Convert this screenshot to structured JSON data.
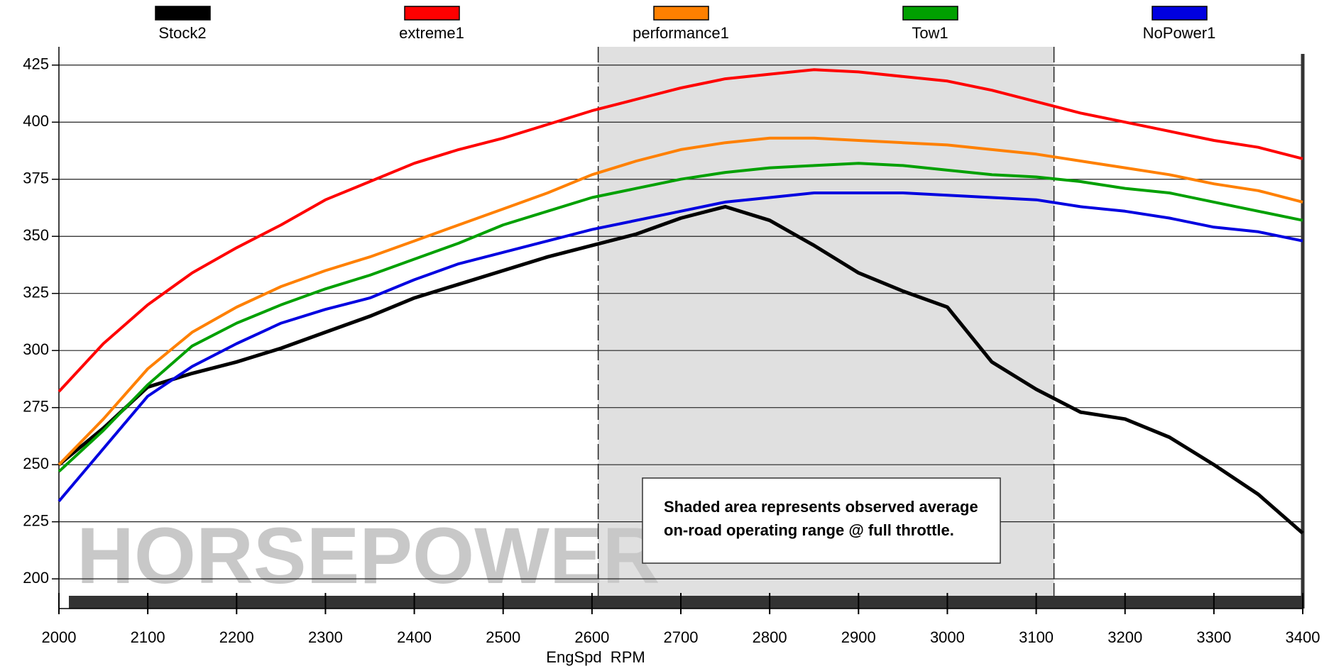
{
  "chart_data": {
    "type": "line",
    "x_label": "EngSpd  RPM",
    "watermark": "HORSEPOWER",
    "annotation": [
      "Shaded area represents observed average",
      "on-road operating range @ full throttle."
    ],
    "shaded_range": [
      2607,
      3120
    ],
    "xlim": [
      2000,
      3400
    ],
    "xticks": [
      2000,
      2100,
      2200,
      2300,
      2400,
      2500,
      2600,
      2700,
      2800,
      2900,
      3000,
      3100,
      3200,
      3300,
      3400
    ],
    "ylim": [
      187,
      433
    ],
    "yticks": [
      200,
      225,
      250,
      275,
      300,
      325,
      350,
      375,
      400,
      425
    ],
    "grid": true,
    "x": [
      2000,
      2050,
      2100,
      2150,
      2200,
      2250,
      2300,
      2350,
      2400,
      2450,
      2500,
      2550,
      2600,
      2650,
      2700,
      2750,
      2800,
      2850,
      2900,
      2950,
      3000,
      3050,
      3100,
      3150,
      3200,
      3250,
      3300,
      3350,
      3400
    ],
    "series": [
      {
        "name": "Stock2",
        "color": "#000000",
        "values": [
          250,
          266,
          284,
          290,
          295,
          301,
          308,
          315,
          323,
          329,
          335,
          341,
          346,
          351,
          358,
          363,
          357,
          346,
          334,
          326,
          319,
          295,
          283,
          273,
          270,
          262,
          250,
          237,
          220
        ]
      },
      {
        "name": "extreme1",
        "color": "#ff0000",
        "values": [
          282,
          303,
          320,
          334,
          345,
          355,
          366,
          374,
          382,
          388,
          393,
          399,
          405,
          410,
          415,
          419,
          421,
          423,
          422,
          420,
          418,
          414,
          409,
          404,
          400,
          396,
          392,
          389,
          384
        ]
      },
      {
        "name": "performance1",
        "color": "#ff8000",
        "values": [
          250,
          270,
          292,
          308,
          319,
          328,
          335,
          341,
          348,
          355,
          362,
          369,
          377,
          383,
          388,
          391,
          393,
          393,
          392,
          391,
          390,
          388,
          386,
          383,
          380,
          377,
          373,
          370,
          365
        ]
      },
      {
        "name": "Tow1",
        "color": "#00a000",
        "values": [
          247,
          265,
          285,
          302,
          312,
          320,
          327,
          333,
          340,
          347,
          355,
          361,
          367,
          371,
          375,
          378,
          380,
          381,
          382,
          381,
          379,
          377,
          376,
          374,
          371,
          369,
          365,
          361,
          357
        ]
      },
      {
        "name": "NoPower1",
        "color": "#0000e0",
        "values": [
          234,
          257,
          280,
          293,
          303,
          312,
          318,
          323,
          331,
          338,
          343,
          348,
          353,
          357,
          361,
          365,
          367,
          369,
          369,
          369,
          368,
          367,
          366,
          363,
          361,
          358,
          354,
          352,
          348
        ]
      }
    ]
  }
}
